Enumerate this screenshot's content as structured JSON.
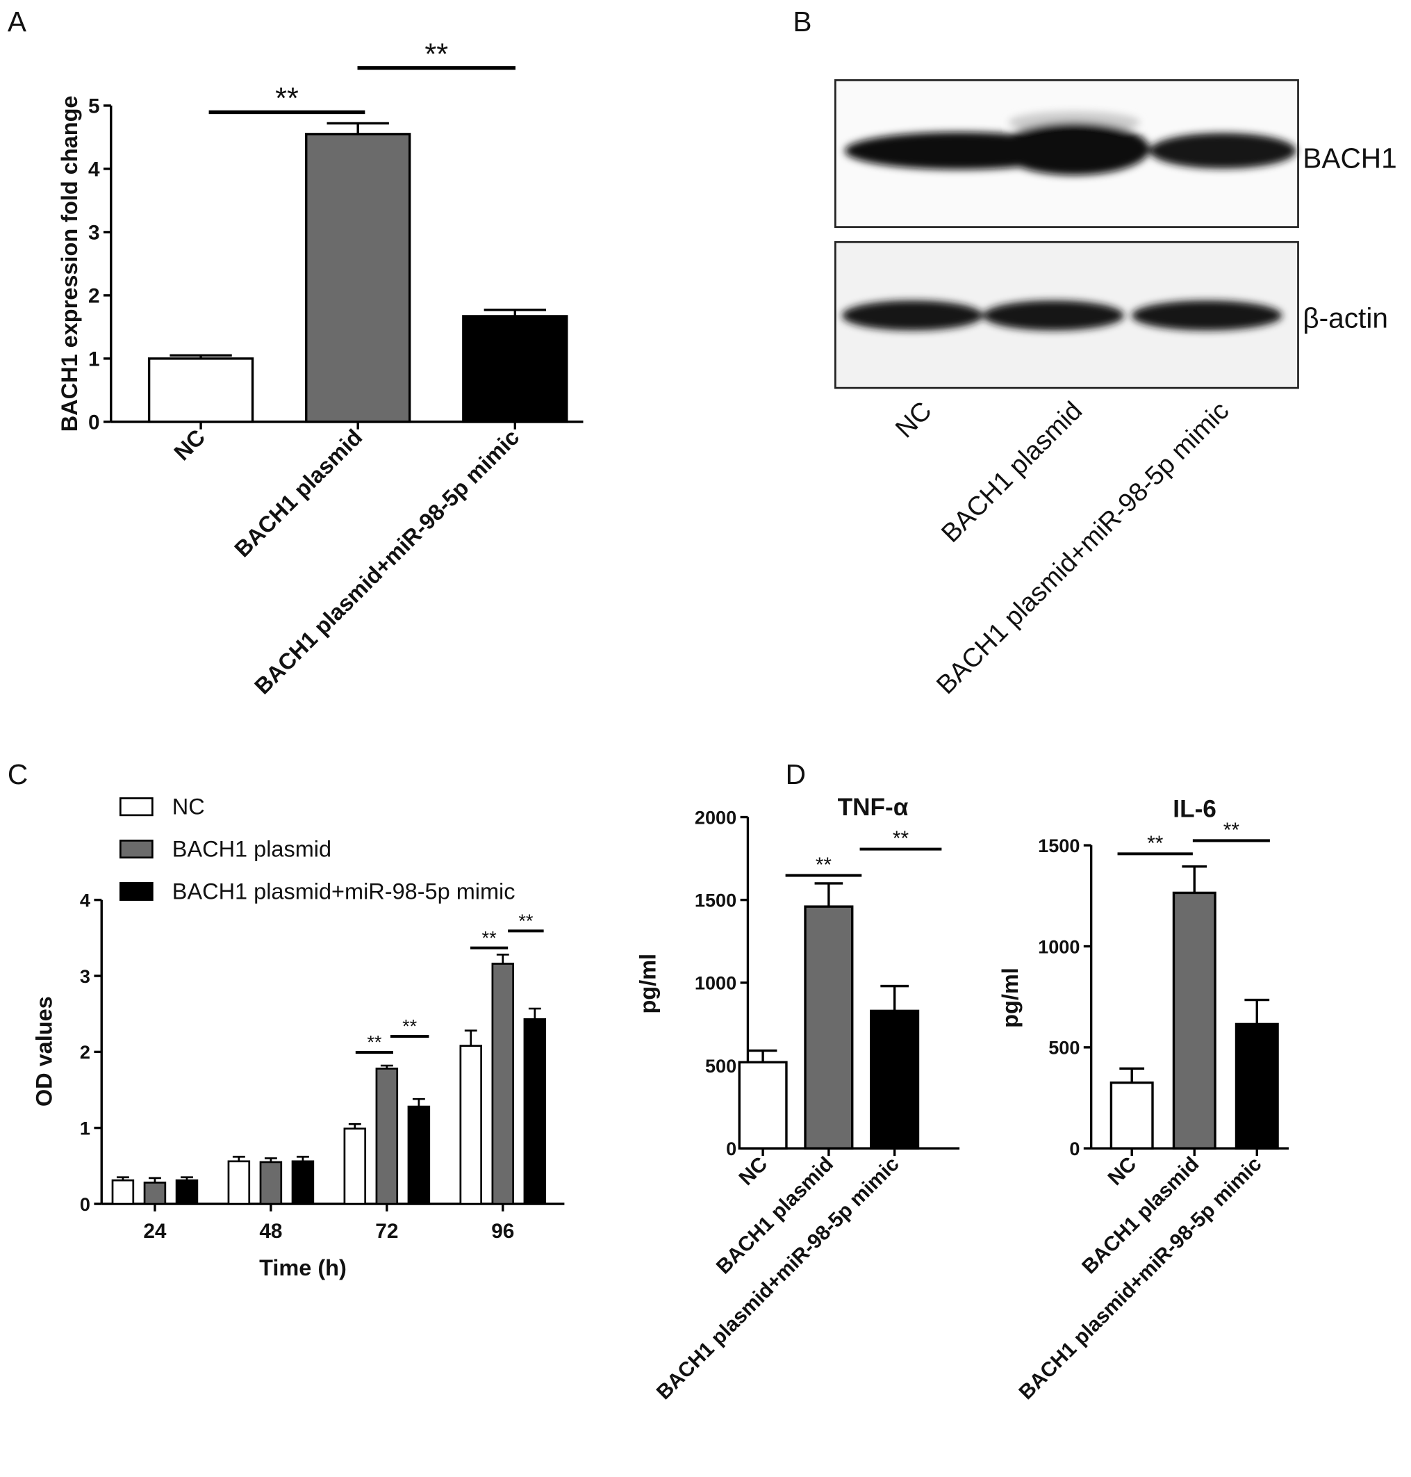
{
  "chart_data": [
    {
      "type": "bar",
      "panel_label": "A",
      "y_label": "BACH1 expression fold change",
      "categories": [
        "NC",
        "BACH1 plasmid",
        "BACH1 plasmid+miR-98-5p mimic"
      ],
      "values": [
        1.0,
        4.55,
        1.67
      ],
      "errors": [
        0.05,
        0.17,
        0.1
      ],
      "colors": [
        "#ffffff",
        "#6b6b6b",
        "#000000"
      ],
      "ylim": [
        0,
        5
      ],
      "yticks": [
        0,
        1,
        2,
        3,
        4,
        5
      ],
      "annotations": [
        "**",
        "**"
      ]
    },
    {
      "type": "grouped_bar",
      "panel_label": "C",
      "y_label": "OD values",
      "x_label": "Time (h)",
      "categories": [
        "24",
        "48",
        "72",
        "96"
      ],
      "series": [
        {
          "name": "NC",
          "color": "#ffffff",
          "values": [
            0.31,
            0.56,
            0.99,
            2.08
          ],
          "errors": [
            0.04,
            0.06,
            0.06,
            0.2
          ]
        },
        {
          "name": "BACH1 plasmid",
          "color": "#6b6b6b",
          "values": [
            0.28,
            0.55,
            1.78,
            3.16
          ],
          "errors": [
            0.06,
            0.05,
            0.04,
            0.12
          ]
        },
        {
          "name": "BACH1 plasmid+miR-98-5p mimic",
          "color": "#000000",
          "values": [
            0.31,
            0.56,
            1.28,
            2.43
          ],
          "errors": [
            0.04,
            0.06,
            0.1,
            0.14
          ]
        }
      ],
      "ylim": [
        0,
        4
      ],
      "yticks": [
        0,
        1,
        2,
        3,
        4
      ],
      "annotations": [
        "**",
        "**",
        "**",
        "**"
      ]
    },
    {
      "type": "bar",
      "panel_label": "D",
      "title": "TNF-α",
      "y_label": "pg/ml",
      "categories": [
        "NC",
        "BACH1 plasmid",
        "BACH1 plasmid+miR-98-5p mimic"
      ],
      "values": [
        520,
        1460,
        830
      ],
      "errors": [
        70,
        140,
        150
      ],
      "colors": [
        "#ffffff",
        "#6b6b6b",
        "#000000"
      ],
      "ylim": [
        0,
        2000
      ],
      "yticks": [
        0,
        500,
        1000,
        1500,
        2000
      ],
      "annotations": [
        "**",
        "**"
      ]
    },
    {
      "type": "bar",
      "title": "IL-6",
      "y_label": "pg/ml",
      "categories": [
        "NC",
        "BACH1 plasmid",
        "BACH1 plasmid+miR-98-5p mimic"
      ],
      "values": [
        325,
        1265,
        615
      ],
      "errors": [
        70,
        130,
        120
      ],
      "colors": [
        "#ffffff",
        "#6b6b6b",
        "#000000"
      ],
      "ylim": [
        0,
        1500
      ],
      "yticks": [
        0,
        500,
        1000,
        1500
      ],
      "annotations": [
        "**",
        "**"
      ]
    }
  ],
  "blot": {
    "panel_label": "B",
    "proteins": [
      "BACH1",
      "β-actin"
    ],
    "lanes": [
      "NC",
      "BACH1 plasmid",
      "BACH1 plasmid+miR-98-5p mimic"
    ]
  }
}
